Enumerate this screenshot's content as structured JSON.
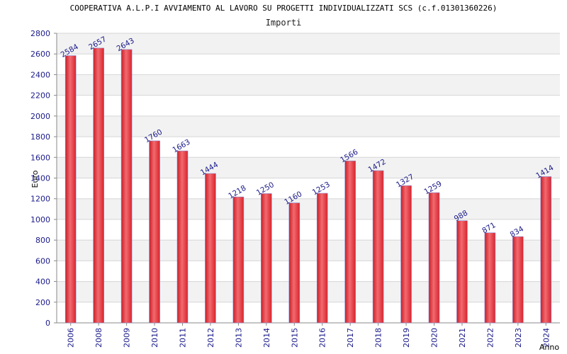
{
  "chart_data": {
    "type": "bar",
    "title": "COOPERATIVA A.L.P.I AVVIAMENTO AL LAVORO SU PROGETTI INDIVIDUALIZZATI SCS (c.f.01301360226)",
    "subtitle": "Importi",
    "xlabel": "Anno",
    "ylabel": "Euro",
    "ylim": [
      0,
      2800
    ],
    "yticks": [
      0,
      200,
      400,
      600,
      800,
      1000,
      1200,
      1400,
      1600,
      1800,
      2000,
      2200,
      2400,
      2600,
      2800
    ],
    "categories": [
      "2006",
      "2008",
      "2009",
      "2010",
      "2011",
      "2012",
      "2013",
      "2014",
      "2015",
      "2016",
      "2017",
      "2018",
      "2019",
      "2020",
      "2021",
      "2022",
      "2023",
      "2024"
    ],
    "values": [
      2584,
      2657,
      2643,
      1760,
      1663,
      1444,
      1218,
      1250,
      1160,
      1253,
      1566,
      1472,
      1327,
      1259,
      988,
      871,
      834,
      1414
    ],
    "grid": true,
    "bar_color": "#e8323a",
    "label_color": "#1a1a8a",
    "band_color": "#f2f2f2"
  }
}
